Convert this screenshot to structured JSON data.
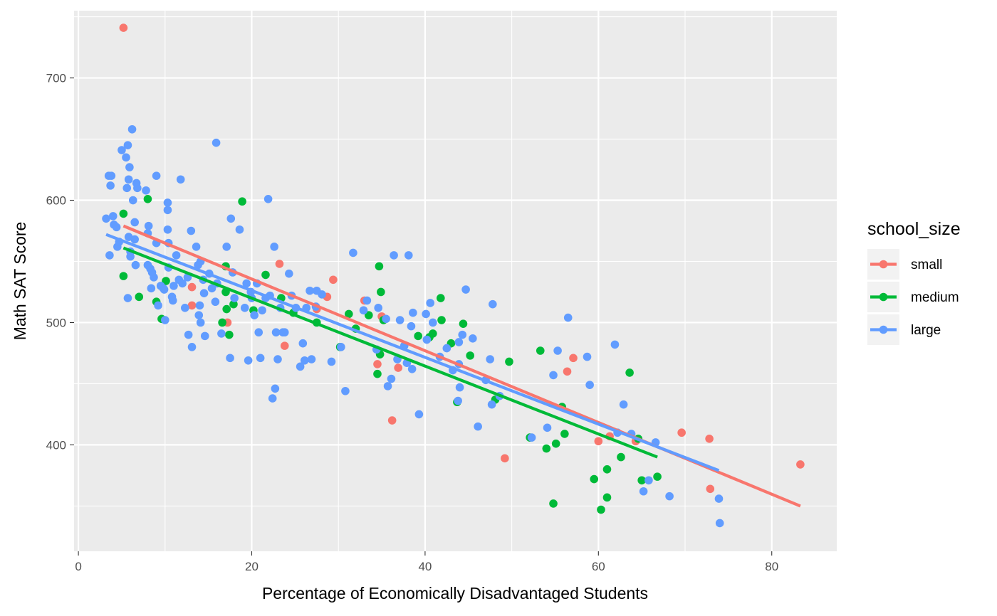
{
  "chart_data": {
    "type": "scatter",
    "title": "",
    "xlabel": "Percentage of Economically Disadvantaged Students",
    "ylabel": "Math SAT Score",
    "xlim": [
      -0.5,
      87.5
    ],
    "ylim": [
      313,
      755
    ],
    "x_ticks": [
      0,
      20,
      40,
      60,
      80
    ],
    "y_ticks": [
      400,
      500,
      600,
      700
    ],
    "grid": true,
    "legend": {
      "title": "school_size",
      "position": "right"
    },
    "series": [
      {
        "name": "small",
        "color": "#F8766D",
        "trend": [
          [
            5.2,
            579
          ],
          [
            83.3,
            350
          ]
        ],
        "points": [
          [
            5.2,
            741
          ],
          [
            13.1,
            529
          ],
          [
            13.1,
            514
          ],
          [
            17.2,
            500
          ],
          [
            23.2,
            548
          ],
          [
            23.8,
            481
          ],
          [
            27.5,
            511
          ],
          [
            28.7,
            521
          ],
          [
            29.4,
            535
          ],
          [
            33.0,
            518
          ],
          [
            34.5,
            466
          ],
          [
            35.0,
            505
          ],
          [
            36.2,
            420
          ],
          [
            36.9,
            463
          ],
          [
            49.2,
            389
          ],
          [
            56.4,
            460
          ],
          [
            57.1,
            471
          ],
          [
            60.0,
            403
          ],
          [
            61.3,
            407
          ],
          [
            64.3,
            403
          ],
          [
            69.6,
            410
          ],
          [
            72.8,
            405
          ],
          [
            72.9,
            364
          ],
          [
            83.3,
            384
          ]
        ]
      },
      {
        "name": "medium",
        "color": "#00BA38",
        "trend": [
          [
            5.2,
            561
          ],
          [
            66.8,
            390
          ]
        ],
        "points": [
          [
            5.2,
            589
          ],
          [
            5.2,
            538
          ],
          [
            7.0,
            521
          ],
          [
            8.0,
            601
          ],
          [
            9.0,
            517
          ],
          [
            9.6,
            503
          ],
          [
            10.1,
            534
          ],
          [
            17.0,
            546
          ],
          [
            17.0,
            525
          ],
          [
            17.4,
            490
          ],
          [
            16.6,
            500
          ],
          [
            17.1,
            511
          ],
          [
            17.9,
            515
          ],
          [
            18.9,
            599
          ],
          [
            20.2,
            510
          ],
          [
            21.6,
            539
          ],
          [
            23.4,
            520
          ],
          [
            24.8,
            508
          ],
          [
            27.5,
            500
          ],
          [
            30.2,
            480
          ],
          [
            31.2,
            507
          ],
          [
            32.0,
            495
          ],
          [
            33.5,
            506
          ],
          [
            34.5,
            458
          ],
          [
            34.7,
            546
          ],
          [
            34.9,
            525
          ],
          [
            34.8,
            474
          ],
          [
            35.2,
            502
          ],
          [
            39.2,
            489
          ],
          [
            40.5,
            488
          ],
          [
            40.9,
            491
          ],
          [
            41.8,
            520
          ],
          [
            41.9,
            502
          ],
          [
            43.0,
            483
          ],
          [
            43.7,
            435
          ],
          [
            44.4,
            499
          ],
          [
            45.2,
            473
          ],
          [
            48.1,
            437
          ],
          [
            49.7,
            468
          ],
          [
            52.1,
            406
          ],
          [
            53.3,
            477
          ],
          [
            54.0,
            397
          ],
          [
            54.8,
            352
          ],
          [
            55.1,
            401
          ],
          [
            55.8,
            431
          ],
          [
            56.1,
            409
          ],
          [
            59.5,
            372
          ],
          [
            60.3,
            347
          ],
          [
            61.0,
            357
          ],
          [
            61.0,
            380
          ],
          [
            62.6,
            390
          ],
          [
            63.6,
            459
          ],
          [
            64.6,
            405
          ],
          [
            65.0,
            371
          ],
          [
            66.8,
            374
          ]
        ]
      },
      {
        "name": "large",
        "color": "#619CFF",
        "trend": [
          [
            3.2,
            572
          ],
          [
            73.9,
            379
          ]
        ],
        "points": [
          [
            3.2,
            585
          ],
          [
            3.5,
            620
          ],
          [
            3.8,
            620
          ],
          [
            3.6,
            555
          ],
          [
            3.7,
            612
          ],
          [
            4.0,
            587
          ],
          [
            4.1,
            580
          ],
          [
            4.4,
            578
          ],
          [
            4.5,
            562
          ],
          [
            4.7,
            566
          ],
          [
            5.0,
            641
          ],
          [
            5.5,
            635
          ],
          [
            5.7,
            645
          ],
          [
            5.8,
            617
          ],
          [
            5.6,
            610
          ],
          [
            5.9,
            627
          ],
          [
            5.8,
            570
          ],
          [
            6.0,
            554
          ],
          [
            5.7,
            520
          ],
          [
            6.0,
            558
          ],
          [
            6.2,
            658
          ],
          [
            6.3,
            600
          ],
          [
            6.5,
            582
          ],
          [
            6.6,
            547
          ],
          [
            6.5,
            568
          ],
          [
            6.7,
            614
          ],
          [
            6.8,
            610
          ],
          [
            7.8,
            608
          ],
          [
            8.0,
            573
          ],
          [
            8.1,
            579
          ],
          [
            8.0,
            547
          ],
          [
            8.3,
            544
          ],
          [
            8.4,
            528
          ],
          [
            8.5,
            541
          ],
          [
            8.7,
            537
          ],
          [
            9.0,
            620
          ],
          [
            9.0,
            565
          ],
          [
            9.2,
            514
          ],
          [
            9.5,
            530
          ],
          [
            9.8,
            528
          ],
          [
            9.9,
            527
          ],
          [
            10.0,
            502
          ],
          [
            10.3,
            598
          ],
          [
            10.3,
            592
          ],
          [
            10.3,
            576
          ],
          [
            10.4,
            565
          ],
          [
            10.4,
            545
          ],
          [
            10.8,
            521
          ],
          [
            10.9,
            518
          ],
          [
            11.0,
            530
          ],
          [
            11.3,
            555
          ],
          [
            11.6,
            535
          ],
          [
            11.8,
            617
          ],
          [
            12.0,
            532
          ],
          [
            12.3,
            512
          ],
          [
            12.6,
            537
          ],
          [
            12.7,
            490
          ],
          [
            13.0,
            575
          ],
          [
            13.1,
            480
          ],
          [
            13.6,
            562
          ],
          [
            13.8,
            547
          ],
          [
            14.1,
            550
          ],
          [
            13.9,
            506
          ],
          [
            14.0,
            514
          ],
          [
            14.1,
            500
          ],
          [
            14.4,
            535
          ],
          [
            14.6,
            489
          ],
          [
            14.5,
            524
          ],
          [
            15.1,
            540
          ],
          [
            15.4,
            528
          ],
          [
            15.8,
            517
          ],
          [
            15.9,
            647
          ],
          [
            16.0,
            532
          ],
          [
            16.5,
            491
          ],
          [
            17.1,
            562
          ],
          [
            17.6,
            585
          ],
          [
            17.5,
            471
          ],
          [
            17.8,
            541
          ],
          [
            18.0,
            520
          ],
          [
            18.6,
            576
          ],
          [
            19.2,
            512
          ],
          [
            19.4,
            532
          ],
          [
            19.6,
            469
          ],
          [
            19.9,
            525
          ],
          [
            20.0,
            520
          ],
          [
            20.3,
            506
          ],
          [
            20.6,
            532
          ],
          [
            20.8,
            492
          ],
          [
            21.0,
            471
          ],
          [
            21.2,
            510
          ],
          [
            21.6,
            520
          ],
          [
            21.9,
            601
          ],
          [
            22.1,
            522
          ],
          [
            22.4,
            438
          ],
          [
            22.6,
            562
          ],
          [
            22.7,
            446
          ],
          [
            22.8,
            492
          ],
          [
            23.0,
            470
          ],
          [
            23.3,
            512
          ],
          [
            23.6,
            492
          ],
          [
            23.8,
            492
          ],
          [
            24.3,
            540
          ],
          [
            24.6,
            522
          ],
          [
            25.1,
            512
          ],
          [
            25.6,
            464
          ],
          [
            25.9,
            483
          ],
          [
            26.1,
            469
          ],
          [
            26.3,
            512
          ],
          [
            26.7,
            526
          ],
          [
            26.9,
            470
          ],
          [
            27.4,
            513
          ],
          [
            27.5,
            526
          ],
          [
            28.1,
            523
          ],
          [
            29.2,
            468
          ],
          [
            30.3,
            480
          ],
          [
            30.8,
            444
          ],
          [
            31.7,
            557
          ],
          [
            32.9,
            510
          ],
          [
            33.3,
            518
          ],
          [
            34.6,
            512
          ],
          [
            34.4,
            478
          ],
          [
            35.5,
            503
          ],
          [
            35.7,
            448
          ],
          [
            36.1,
            454
          ],
          [
            36.4,
            555
          ],
          [
            36.8,
            470
          ],
          [
            37.1,
            502
          ],
          [
            37.6,
            481
          ],
          [
            37.9,
            467
          ],
          [
            38.1,
            555
          ],
          [
            38.4,
            497
          ],
          [
            38.5,
            462
          ],
          [
            38.6,
            508
          ],
          [
            39.3,
            425
          ],
          [
            40.1,
            507
          ],
          [
            40.2,
            486
          ],
          [
            40.6,
            516
          ],
          [
            40.9,
            500
          ],
          [
            41.7,
            472
          ],
          [
            42.5,
            479
          ],
          [
            43.2,
            461
          ],
          [
            43.9,
            466
          ],
          [
            43.9,
            484
          ],
          [
            43.8,
            436
          ],
          [
            44.0,
            447
          ],
          [
            44.3,
            490
          ],
          [
            44.7,
            527
          ],
          [
            45.5,
            487
          ],
          [
            46.1,
            415
          ],
          [
            47.0,
            453
          ],
          [
            47.7,
            433
          ],
          [
            47.5,
            470
          ],
          [
            47.8,
            515
          ],
          [
            48.6,
            440
          ],
          [
            52.3,
            406
          ],
          [
            54.1,
            414
          ],
          [
            54.8,
            457
          ],
          [
            55.3,
            477
          ],
          [
            56.5,
            504
          ],
          [
            58.7,
            472
          ],
          [
            59.0,
            449
          ],
          [
            61.9,
            482
          ],
          [
            62.2,
            410
          ],
          [
            62.9,
            433
          ],
          [
            63.8,
            409
          ],
          [
            65.2,
            362
          ],
          [
            65.8,
            371
          ],
          [
            66.6,
            402
          ],
          [
            68.2,
            358
          ],
          [
            73.9,
            356
          ],
          [
            74.0,
            336
          ]
        ]
      }
    ]
  }
}
